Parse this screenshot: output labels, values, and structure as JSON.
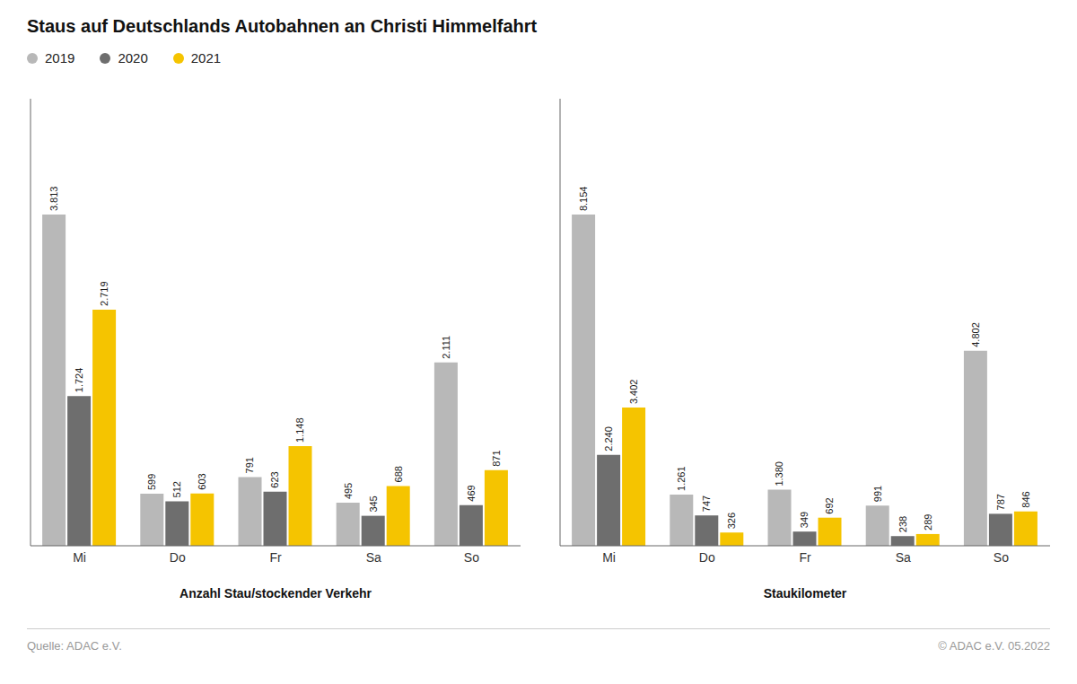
{
  "chart_data": [
    {
      "type": "bar",
      "title": "Staus auf Deutschlands Autobahnen an Christi Himmelfahrt",
      "annotations": [
        "Quelle: ADAC e.V.",
        "© ADAC e.V. 05.2022"
      ],
      "xlabel": "Anzahl Stau/stockender Verkehr",
      "categories": [
        "Mi",
        "Do",
        "Fr",
        "Sa",
        "So"
      ],
      "series": [
        {
          "name": "2019",
          "color": "#b8b8b8",
          "values": [
            3813,
            599,
            791,
            495,
            2111
          ],
          "value_labels": [
            "3.813",
            "599",
            "791",
            "495",
            "2.111"
          ]
        },
        {
          "name": "2020",
          "color": "#6e6e6e",
          "values": [
            1724,
            512,
            623,
            345,
            469
          ],
          "value_labels": [
            "1.724",
            "512",
            "623",
            "345",
            "469"
          ]
        },
        {
          "name": "2021",
          "color": "#f5c400",
          "values": [
            2719,
            603,
            1148,
            688,
            871
          ],
          "value_labels": [
            "2.719",
            "603",
            "1.148",
            "688",
            "871"
          ]
        }
      ],
      "ylim": [
        0,
        5147.55
      ],
      "grid": false,
      "legend": "top-left",
      "data_labels": true,
      "tick_labels": "x"
    },
    {
      "type": "bar",
      "xlabel": "Staukilometer",
      "categories": [
        "Mi",
        "Do",
        "Fr",
        "Sa",
        "So"
      ],
      "series": [
        {
          "name": "2019",
          "color": "#b8b8b8",
          "values": [
            8154,
            1261,
            1380,
            991,
            4802
          ],
          "value_labels": [
            "8.154",
            "1.261",
            "1.380",
            "991",
            "4.802"
          ]
        },
        {
          "name": "2020",
          "color": "#6e6e6e",
          "values": [
            2240,
            747,
            349,
            238,
            787
          ],
          "value_labels": [
            "2.240",
            "747",
            "349",
            "238",
            "787"
          ]
        },
        {
          "name": "2021",
          "color": "#f5c400",
          "values": [
            3402,
            326,
            692,
            289,
            846
          ],
          "value_labels": [
            "3.402",
            "326",
            "692",
            "289",
            "846"
          ]
        }
      ],
      "ylim": [
        0,
        11007.9
      ],
      "grid": false,
      "data_labels": true,
      "tick_labels": "x"
    }
  ]
}
